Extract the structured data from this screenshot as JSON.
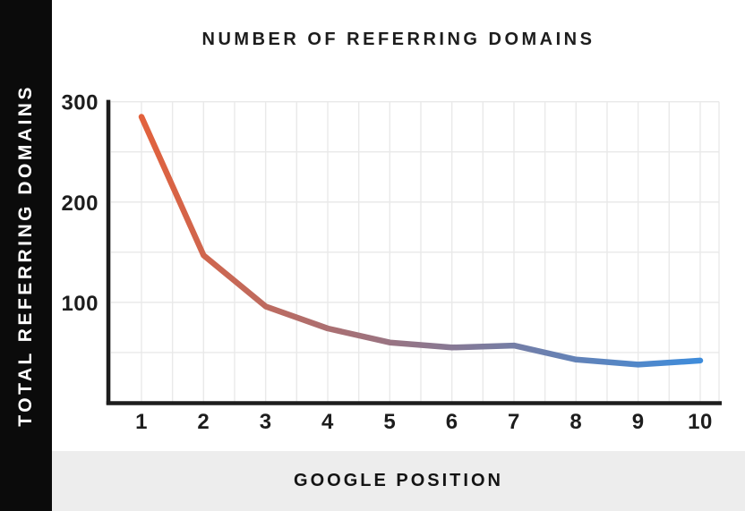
{
  "page": {
    "title": "NUMBER OF REFERRING DOMAINS",
    "y_axis_title": "TOTAL REFERRING DOMAINS",
    "x_axis_title": "GOOGLE POSITION"
  },
  "colors": {
    "sidebar_bg": "#0b0b0b",
    "sidebar_text": "#ffffff",
    "footer_bg": "#ededed",
    "grid": "#e9e9e9",
    "axis": "#1d1d1d",
    "text": "#1d1d1d",
    "line_gradient_start": "#E2613C",
    "line_gradient_end": "#3E8CDB"
  },
  "chart_data": {
    "type": "line",
    "title": "NUMBER OF REFERRING DOMAINS",
    "xlabel": "GOOGLE POSITION",
    "ylabel": "TOTAL REFERRING DOMAINS",
    "x": [
      1,
      2,
      3,
      4,
      5,
      6,
      7,
      8,
      9,
      10
    ],
    "values": [
      285,
      147,
      96,
      74,
      60,
      55,
      57,
      43,
      38,
      42
    ],
    "x_tick_labels": [
      "1",
      "2",
      "3",
      "4",
      "5",
      "6",
      "7",
      "8",
      "9",
      "10"
    ],
    "y_tick_labels": [
      "100",
      "200",
      "300"
    ],
    "y_tick_values": [
      100,
      200,
      300
    ],
    "ylim": [
      0,
      300
    ],
    "xlim": [
      0.5,
      10.3
    ],
    "grid": "on",
    "grid_step_y_units": 50,
    "grid_step_x_units": 0.5,
    "legend": "none",
    "line_colors": [
      "#E2613C",
      "#3E8CDB"
    ]
  }
}
